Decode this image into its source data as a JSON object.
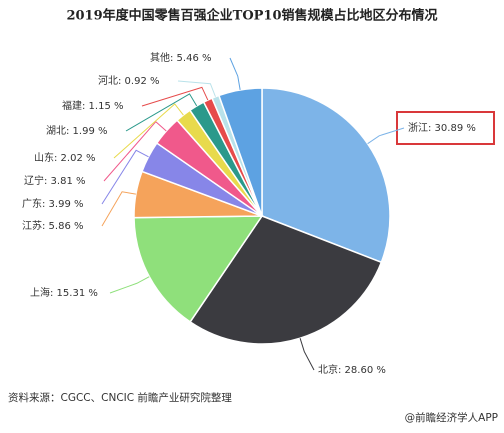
{
  "chart_data": {
    "type": "pie",
    "title": "2019年度中国零售百强企业TOP10销售规模占比地区分布情况",
    "values": [
      30.89,
      28.6,
      15.31,
      5.86,
      3.99,
      3.81,
      2.02,
      1.99,
      1.15,
      0.92,
      5.46
    ],
    "value_labels": [
      "浙江: 30.89 %",
      "北京: 28.60 %",
      "上海: 15.31 %",
      "江苏: 5.86 %",
      "广东: 3.99 %",
      "辽宁: 3.81 %",
      "山东: 2.02 %",
      "湖北: 1.99 %",
      "福建: 1.15 %",
      "河北: 0.92 %",
      "其他: 5.46 %"
    ],
    "colors": [
      "#7db4e8",
      "#3b3b40",
      "#8fe07b",
      "#f5a35b",
      "#8786e8",
      "#f0598b",
      "#e8da4c",
      "#2b998b",
      "#e64b4b",
      "#b9e2ea",
      "#5da2e2"
    ],
    "source": "资料来源：CGCC、CNCIC 前瞻产业研究院整理",
    "logo": "@前瞻经济学人APP"
  }
}
